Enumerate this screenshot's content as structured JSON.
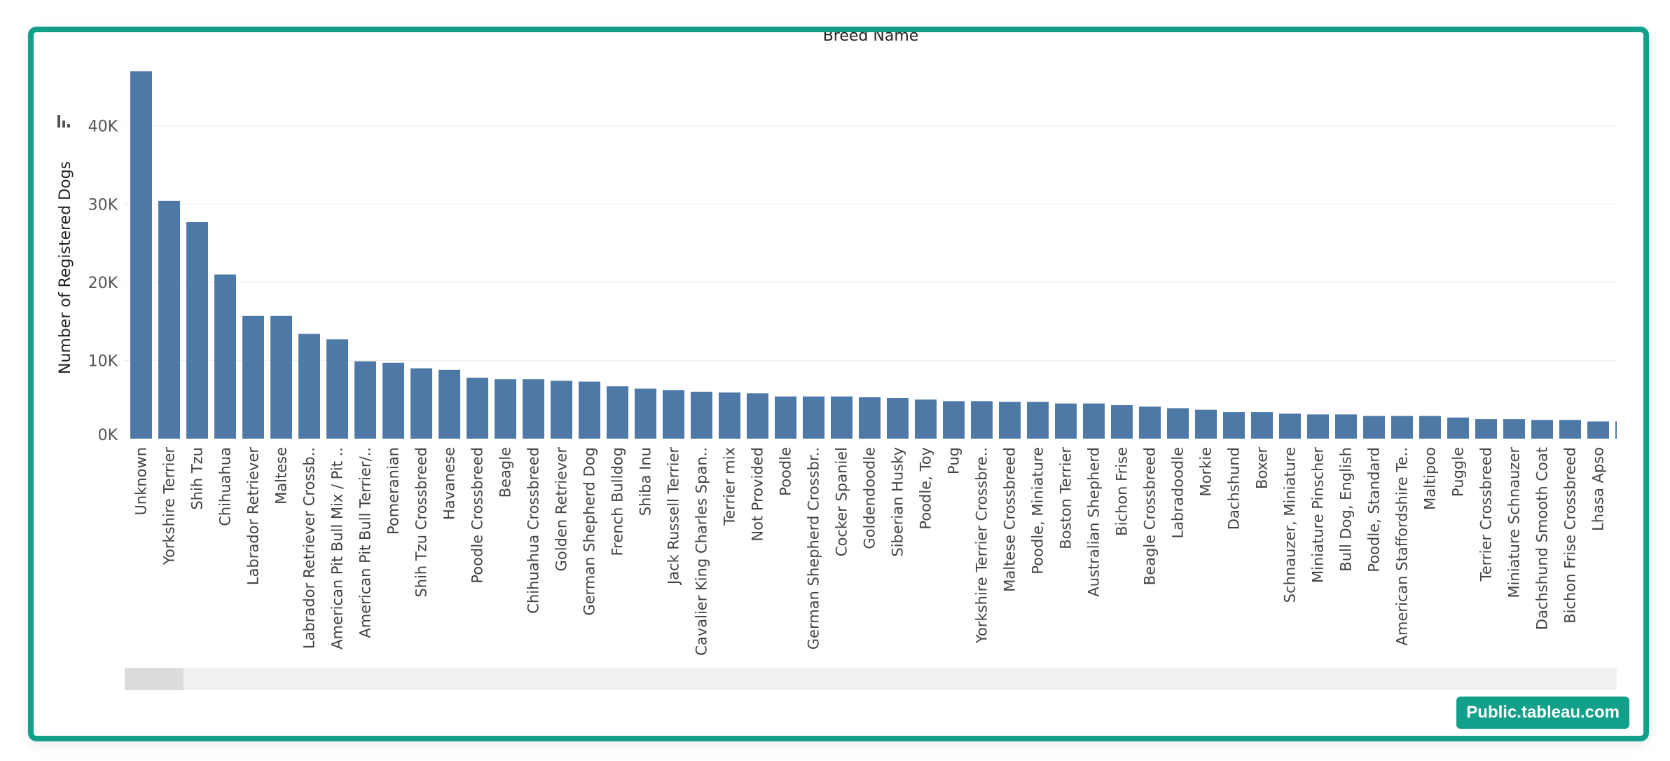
{
  "badge": {
    "label": "Public.tableau.com"
  },
  "chart_data": {
    "type": "bar",
    "title": "Breed Name",
    "xlabel": "",
    "ylabel": "Number of Registered Dogs",
    "ylim": [
      0,
      47500
    ],
    "yticks": [
      {
        "value": 0,
        "label": "0K"
      },
      {
        "value": 10000,
        "label": "10K"
      },
      {
        "value": 20000,
        "label": "20K"
      },
      {
        "value": 30000,
        "label": "30K"
      },
      {
        "value": 40000,
        "label": "40K"
      }
    ],
    "grid": true,
    "color": "#4e79a7",
    "categories": [
      "Unknown",
      "Yorkshire Terrier",
      "Shih Tzu",
      "Chihuahua",
      "Labrador Retriever",
      "Maltese",
      "Labrador Retriever Crossb..",
      "American Pit Bull Mix / Pit ..",
      "American Pit Bull Terrier/..",
      "Pomeranian",
      "Shih Tzu Crossbreed",
      "Havanese",
      "Poodle Crossbreed",
      "Beagle",
      "Chihuahua Crossbreed",
      "Golden Retriever",
      "German Shepherd Dog",
      "French Bulldog",
      "Shiba Inu",
      "Jack Russell Terrier",
      "Cavalier King Charles Span..",
      "Terrier mix",
      "Not Provided",
      "Poodle",
      "German Shepherd Crossbr..",
      "Cocker Spaniel",
      "Goldendoodle",
      "Siberian Husky",
      "Poodle, Toy",
      "Pug",
      "Yorkshire Terrier Crossbre..",
      "Maltese Crossbreed",
      "Poodle, Miniature",
      "Boston Terrier",
      "Australian Shepherd",
      "Bichon Frise",
      "Beagle Crossbreed",
      "Labradoodle",
      "Morkie",
      "Dachshund",
      "Boxer",
      "Schnauzer, Miniature",
      "Miniature Pinscher",
      "Bull Dog, English",
      "Poodle, Standard",
      "American Staffordshire Te..",
      "Maltipoo",
      "Puggle",
      "Terrier Crossbreed",
      "Miniature Schnauzer",
      "Dachshund Smooth Coat",
      "Bichon Frise Crossbreed",
      "Lhasa Apso"
    ],
    "values": [
      47000,
      30400,
      27700,
      21000,
      15700,
      15700,
      13400,
      12700,
      9900,
      9700,
      9000,
      8800,
      7800,
      7600,
      7600,
      7400,
      7300,
      6700,
      6400,
      6200,
      6000,
      5900,
      5800,
      5400,
      5400,
      5400,
      5300,
      5200,
      5000,
      4800,
      4800,
      4700,
      4700,
      4500,
      4500,
      4300,
      4100,
      3900,
      3700,
      3400,
      3400,
      3200,
      3100,
      3100,
      2900,
      2900,
      2900,
      2700,
      2500,
      2500,
      2400,
      2400,
      2200
    ],
    "partial_next_value": 2200
  }
}
